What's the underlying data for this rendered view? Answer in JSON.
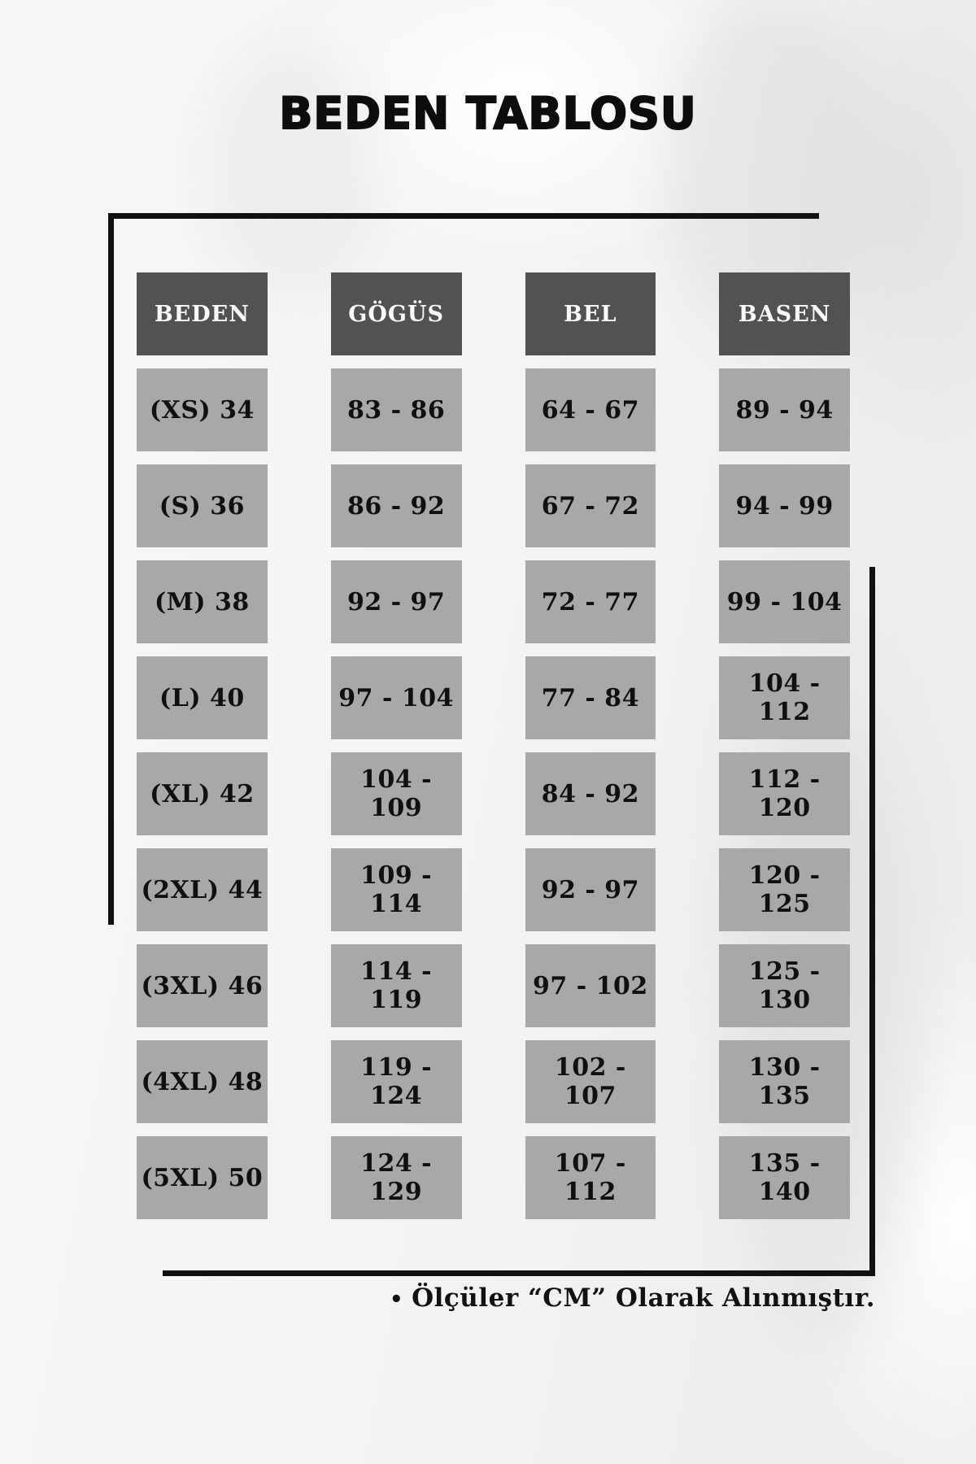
{
  "page": {
    "title": "BEDEN TABLOSU",
    "footnote_bullet": "•",
    "footnote": "Ölçüler “CM” Olarak Alınmıştır."
  },
  "colors": {
    "header_bg": "#535252",
    "header_text": "#fbfafa",
    "cell_bg": "#a9a7a7",
    "cell_text": "#111010",
    "frame_line": "#121111",
    "background": "#f4f3f3"
  },
  "chart_data": {
    "type": "table",
    "title": "BEDEN TABLOSU",
    "columns": [
      "BEDEN",
      "GÖGÜS",
      "BEL",
      "BASEN"
    ],
    "rows": [
      [
        "(XS) 34",
        "83 - 86",
        "64 - 67",
        "89 - 94"
      ],
      [
        "(S) 36",
        "86 - 92",
        "67 - 72",
        "94 - 99"
      ],
      [
        "(M) 38",
        "92 - 97",
        "72 - 77",
        "99 - 104"
      ],
      [
        "(L) 40",
        "97 - 104",
        "77 - 84",
        "104 - 112"
      ],
      [
        "(XL) 42",
        "104 - 109",
        "84 - 92",
        "112 - 120"
      ],
      [
        "(2XL) 44",
        "109 - 114",
        "92 - 97",
        "120 - 125"
      ],
      [
        "(3XL) 46",
        "114 - 119",
        "97 - 102",
        "125 - 130"
      ],
      [
        "(4XL) 48",
        "119 - 124",
        "102 - 107",
        "130 - 135"
      ],
      [
        "(5XL) 50",
        "124 - 129",
        "107 - 112",
        "135 - 140"
      ]
    ],
    "note": "Ölçüler “CM” Olarak Alınmıştır.",
    "units": "cm"
  }
}
